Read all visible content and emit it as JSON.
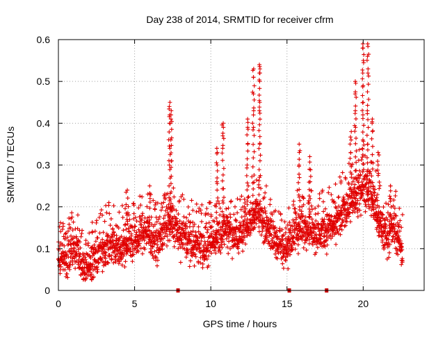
{
  "chart_data": {
    "type": "scatter",
    "title": "Day 238 of 2014, SRMTID for receiver cfrm",
    "xlabel": "GPS time / hours",
    "ylabel": "SRMTID / TECUs",
    "xlim": [
      0,
      24
    ],
    "ylim": [
      0,
      0.6
    ],
    "xticks": [
      0,
      5,
      10,
      15,
      20
    ],
    "yticks": [
      0,
      0.1,
      0.2,
      0.3,
      0.4,
      0.5,
      0.6
    ],
    "xtick_labels": [
      "0",
      "5",
      "10",
      "15",
      "20"
    ],
    "ytick_labels": [
      "0",
      "0.1",
      "0.2",
      "0.3",
      "0.4",
      "0.5",
      "0.6"
    ],
    "grid": true,
    "marker": "+",
    "marker_color": "#e00000",
    "x_range_data": [
      0,
      22.6
    ],
    "baseline_profile": [
      [
        0.0,
        0.08
      ],
      [
        0.5,
        0.07
      ],
      [
        1.0,
        0.1
      ],
      [
        1.5,
        0.06
      ],
      [
        2.0,
        0.06
      ],
      [
        2.5,
        0.08
      ],
      [
        3.0,
        0.1
      ],
      [
        3.5,
        0.11
      ],
      [
        4.0,
        0.1
      ],
      [
        4.5,
        0.11
      ],
      [
        5.0,
        0.12
      ],
      [
        5.5,
        0.14
      ],
      [
        6.0,
        0.13
      ],
      [
        6.5,
        0.11
      ],
      [
        7.0,
        0.15
      ],
      [
        7.5,
        0.16
      ],
      [
        8.0,
        0.13
      ],
      [
        8.5,
        0.12
      ],
      [
        9.0,
        0.11
      ],
      [
        9.5,
        0.1
      ],
      [
        10.0,
        0.11
      ],
      [
        10.5,
        0.13
      ],
      [
        11.0,
        0.15
      ],
      [
        11.5,
        0.13
      ],
      [
        12.0,
        0.13
      ],
      [
        12.5,
        0.16
      ],
      [
        13.0,
        0.19
      ],
      [
        13.5,
        0.16
      ],
      [
        14.0,
        0.13
      ],
      [
        14.5,
        0.11
      ],
      [
        15.0,
        0.1
      ],
      [
        15.5,
        0.13
      ],
      [
        16.0,
        0.15
      ],
      [
        16.5,
        0.16
      ],
      [
        17.0,
        0.13
      ],
      [
        17.5,
        0.14
      ],
      [
        18.0,
        0.15
      ],
      [
        18.5,
        0.17
      ],
      [
        19.0,
        0.2
      ],
      [
        19.5,
        0.22
      ],
      [
        20.0,
        0.25
      ],
      [
        20.5,
        0.23
      ],
      [
        21.0,
        0.16
      ],
      [
        21.5,
        0.13
      ],
      [
        22.0,
        0.15
      ],
      [
        22.6,
        0.09
      ]
    ],
    "spikes": [
      {
        "x": 4.5,
        "values": [
          0.17,
          0.18,
          0.24
        ]
      },
      {
        "x": 6.0,
        "values": [
          0.22,
          0.23,
          0.25
        ]
      },
      {
        "x": 7.3,
        "values": [
          0.3,
          0.34,
          0.4,
          0.42,
          0.44,
          0.45
        ]
      },
      {
        "x": 7.4,
        "values": [
          0.31,
          0.36,
          0.41,
          0.43
        ]
      },
      {
        "x": 10.4,
        "values": [
          0.26,
          0.3,
          0.33,
          0.34
        ]
      },
      {
        "x": 10.8,
        "values": [
          0.34,
          0.37,
          0.39,
          0.4
        ]
      },
      {
        "x": 12.4,
        "values": [
          0.3,
          0.35,
          0.39,
          0.41
        ]
      },
      {
        "x": 12.8,
        "values": [
          0.39,
          0.43,
          0.47,
          0.51,
          0.53
        ]
      },
      {
        "x": 13.2,
        "values": [
          0.35,
          0.43,
          0.45,
          0.5,
          0.52,
          0.53,
          0.54
        ]
      },
      {
        "x": 15.8,
        "values": [
          0.27,
          0.3,
          0.33,
          0.35
        ]
      },
      {
        "x": 16.5,
        "values": [
          0.26,
          0.29,
          0.32
        ]
      },
      {
        "x": 19.2,
        "values": [
          0.3,
          0.33,
          0.36,
          0.38
        ]
      },
      {
        "x": 19.5,
        "values": [
          0.39,
          0.43,
          0.47,
          0.5
        ]
      },
      {
        "x": 20.0,
        "values": [
          0.36,
          0.42,
          0.45,
          0.49,
          0.52,
          0.55,
          0.58,
          0.59
        ]
      },
      {
        "x": 20.3,
        "values": [
          0.35,
          0.43,
          0.52,
          0.56,
          0.59
        ]
      },
      {
        "x": 20.6,
        "values": [
          0.38,
          0.4,
          0.41
        ]
      },
      {
        "x": 21.0,
        "values": [
          0.28,
          0.3,
          0.33
        ]
      },
      {
        "x": 21.8,
        "values": [
          0.22,
          0.25,
          0.25
        ]
      }
    ],
    "zero_markers_x": [
      7.85,
      15.15,
      17.6
    ]
  }
}
